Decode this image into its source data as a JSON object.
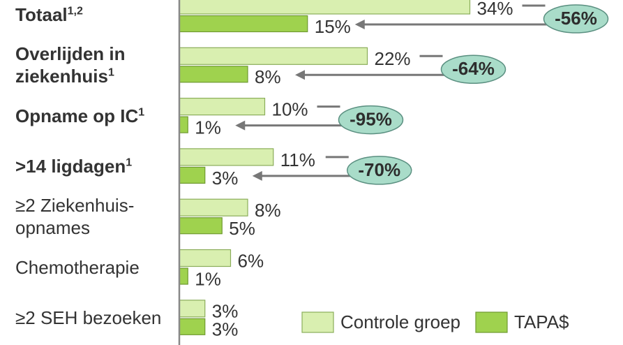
{
  "chart_data": {
    "type": "hbar",
    "categories": [
      "Totaal",
      "Overlijden in ziekenhuis",
      "Opname op IC",
      ">14 ligdagen",
      "≥2 Ziekenhuis-opnames",
      "Chemotherapie",
      "≥2 SEH bezoeken"
    ],
    "category_superscripts": [
      "1,2",
      "1",
      "1",
      "1",
      null,
      null,
      null
    ],
    "category_bold": [
      true,
      true,
      true,
      true,
      false,
      false,
      false
    ],
    "series": [
      {
        "name": "Controle groep",
        "color": "#d9efb0",
        "stroke": "#8aad5a",
        "values": [
          34,
          22,
          10,
          11,
          8,
          6,
          3
        ],
        "value_labels": [
          "34%",
          "22%",
          "10%",
          "11%",
          "8%",
          "6%",
          "3%"
        ]
      },
      {
        "name": "TAPA$",
        "color": "#9fd24e",
        "stroke": "#6f9a30",
        "values": [
          15,
          8,
          1,
          3,
          5,
          1,
          3
        ],
        "value_labels": [
          "15%",
          "8%",
          "1%",
          "3%",
          "5%",
          "1%",
          "3%"
        ]
      }
    ],
    "reductions": [
      "-56%",
      "-64%",
      "-95%",
      "-70%",
      null,
      null,
      null
    ],
    "xlim": [
      0,
      52
    ],
    "legend": "bottom-right"
  }
}
